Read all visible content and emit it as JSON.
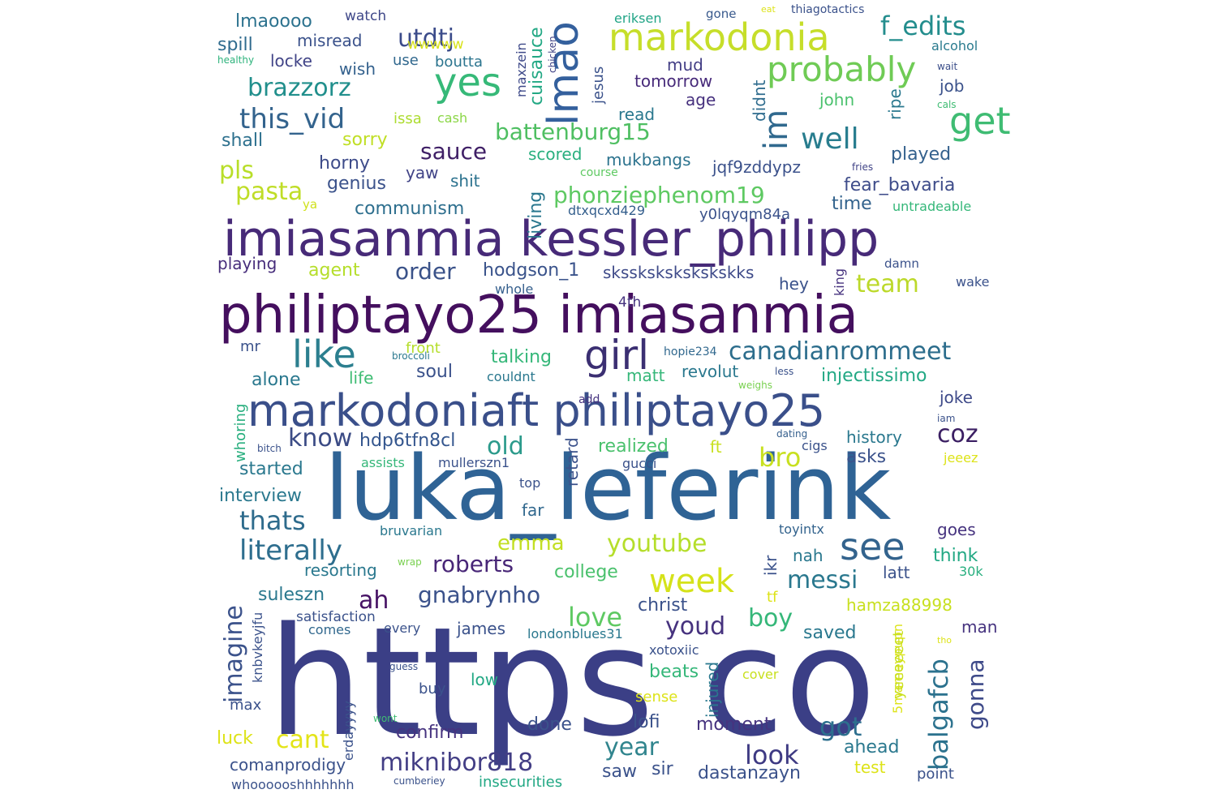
{
  "cloud": {
    "words": [
      {
        "text": "https co",
        "color": "#3b3f86"
      },
      {
        "text": "luka_leferink",
        "color": "#2f6395"
      },
      {
        "text": "philiptayo25 imiasanmia",
        "color": "#440f5e"
      },
      {
        "text": "imiasanmia kessler_philipp",
        "color": "#472a78"
      },
      {
        "text": "markodoniaft philiptayo25",
        "color": "#3a4f8a"
      },
      {
        "text": "markodonia",
        "color": "#c6de2a"
      },
      {
        "text": "lmao",
        "color": "#34609d"
      },
      {
        "text": "yes",
        "color": "#36b978"
      },
      {
        "text": "probably",
        "color": "#6fcb55"
      },
      {
        "text": "get",
        "color": "#3fbc73"
      },
      {
        "text": "f_edits",
        "color": "#238d8d"
      },
      {
        "text": "utdtj",
        "color": "#3b4b8a"
      },
      {
        "text": "brazzorz",
        "color": "#218f8c"
      },
      {
        "text": "this_vid",
        "color": "#33638d"
      },
      {
        "text": "im",
        "color": "#30698e"
      },
      {
        "text": "well",
        "color": "#287d8e"
      },
      {
        "text": "battenburg15",
        "color": "#4fbf62"
      },
      {
        "text": "sauce",
        "color": "#3f1f66"
      },
      {
        "text": "pls",
        "color": "#b8de29"
      },
      {
        "text": "pasta",
        "color": "#bfdd27"
      },
      {
        "text": "phonziephenom19",
        "color": "#5ec962"
      },
      {
        "text": "order",
        "color": "#3a5289"
      },
      {
        "text": "like",
        "color": "#2c7f8f"
      },
      {
        "text": "girl",
        "color": "#3b2f72"
      },
      {
        "text": "canadianrommeet",
        "color": "#2c6d8c"
      },
      {
        "text": "team",
        "color": "#bcd92a"
      },
      {
        "text": "know",
        "color": "#3b4b85"
      },
      {
        "text": "hdp6tfn8cl",
        "color": "#34568e"
      },
      {
        "text": "old",
        "color": "#2b9a8b"
      },
      {
        "text": "bro",
        "color": "#c8e020"
      },
      {
        "text": "coz",
        "color": "#3b1f63"
      },
      {
        "text": "see",
        "color": "#33638d"
      },
      {
        "text": "literally",
        "color": "#2e6e8e"
      },
      {
        "text": "thats",
        "color": "#2e6b8c"
      },
      {
        "text": "roberts",
        "color": "#482677"
      },
      {
        "text": "youtube",
        "color": "#b5de2b"
      },
      {
        "text": "week",
        "color": "#d5e21a"
      },
      {
        "text": "messi",
        "color": "#2a788e"
      },
      {
        "text": "emma",
        "color": "#c2df23"
      },
      {
        "text": "ah",
        "color": "#471365"
      },
      {
        "text": "gnabrynho",
        "color": "#3b528b"
      },
      {
        "text": "love",
        "color": "#5ec962"
      },
      {
        "text": "boy",
        "color": "#35b779"
      },
      {
        "text": "youd",
        "color": "#46327e"
      },
      {
        "text": "imagine",
        "color": "#3b528b"
      },
      {
        "text": "balgafcb",
        "color": "#2c728e"
      },
      {
        "text": "gonna",
        "color": "#3e4a89"
      },
      {
        "text": "got",
        "color": "#2d6f8e"
      },
      {
        "text": "cant",
        "color": "#e3e418"
      },
      {
        "text": "year",
        "color": "#31858e"
      },
      {
        "text": "look",
        "color": "#3e3a83"
      },
      {
        "text": "miknibor818",
        "color": "#433e85"
      },
      {
        "text": "lmaoooo",
        "color": "#2c728e"
      },
      {
        "text": "watch",
        "color": "#3f4889"
      },
      {
        "text": "spill",
        "color": "#2f6b8e"
      },
      {
        "text": "misread",
        "color": "#3b528b"
      },
      {
        "text": "wwwww",
        "color": "#d8e219"
      },
      {
        "text": "locke",
        "color": "#414487"
      },
      {
        "text": "wish",
        "color": "#34618d"
      },
      {
        "text": "use",
        "color": "#31688e"
      },
      {
        "text": "boutta",
        "color": "#2b748e"
      },
      {
        "text": "issa",
        "color": "#addc30"
      },
      {
        "text": "cash",
        "color": "#8bd646"
      },
      {
        "text": "sorry",
        "color": "#c0df25"
      },
      {
        "text": "shall",
        "color": "#2d708e"
      },
      {
        "text": "horny",
        "color": "#3e4c8a"
      },
      {
        "text": "genius",
        "color": "#3b528b"
      },
      {
        "text": "yaw",
        "color": "#414487"
      },
      {
        "text": "shit",
        "color": "#2c728e"
      },
      {
        "text": "communism",
        "color": "#2e6f8e"
      },
      {
        "text": "agent",
        "color": "#b5de2b"
      },
      {
        "text": "playing",
        "color": "#472d7b"
      },
      {
        "text": "hodgson_1",
        "color": "#3a538b"
      },
      {
        "text": "living",
        "color": "#2a778e"
      },
      {
        "text": "cuisauce",
        "color": "#22a884"
      },
      {
        "text": "maxzein",
        "color": "#3e4989"
      },
      {
        "text": "chicken",
        "color": "#414487"
      },
      {
        "text": "jesus",
        "color": "#3b528b"
      },
      {
        "text": "mud",
        "color": "#433e85"
      },
      {
        "text": "tomorrow",
        "color": "#472a7a"
      },
      {
        "text": "read",
        "color": "#2a788e"
      },
      {
        "text": "age",
        "color": "#46307e"
      },
      {
        "text": "didnt",
        "color": "#2f6c8e"
      },
      {
        "text": "scored",
        "color": "#29af7f"
      },
      {
        "text": "mukbangs",
        "color": "#2c738e"
      },
      {
        "text": "jqf9zddypz",
        "color": "#3b518b"
      },
      {
        "text": "eriksen",
        "color": "#20a486"
      },
      {
        "text": "gone",
        "color": "#38598c"
      },
      {
        "text": "eat",
        "color": "#dde318"
      },
      {
        "text": "thiagotactics",
        "color": "#3b528b"
      },
      {
        "text": "alcohol",
        "color": "#2a7b8e"
      },
      {
        "text": "wait",
        "color": "#3c4f8a"
      },
      {
        "text": "cals",
        "color": "#3fbc73"
      },
      {
        "text": "healthy",
        "color": "#2eb37c"
      },
      {
        "text": "ripe",
        "color": "#2a788e"
      },
      {
        "text": "job",
        "color": "#3b528b"
      },
      {
        "text": "john",
        "color": "#4ac16d"
      },
      {
        "text": "played",
        "color": "#34618d"
      },
      {
        "text": "fear_bavaria",
        "color": "#3e4c8a"
      },
      {
        "text": "time",
        "color": "#33638d"
      },
      {
        "text": "untradeable",
        "color": "#35b779"
      },
      {
        "text": "y0lqyqm84a",
        "color": "#3b528b"
      },
      {
        "text": "dtxqcxd429",
        "color": "#355f8d"
      },
      {
        "text": "ya",
        "color": "#d0e11c"
      },
      {
        "text": "course",
        "color": "#5ec962"
      },
      {
        "text": "fries",
        "color": "#414487"
      },
      {
        "text": "sksskskskskskskks",
        "color": "#3e4a89"
      },
      {
        "text": "damn",
        "color": "#3b528b"
      },
      {
        "text": "king",
        "color": "#46327e"
      },
      {
        "text": "wake",
        "color": "#3b528b"
      },
      {
        "text": "hey",
        "color": "#3b528b"
      },
      {
        "text": "whole",
        "color": "#355f8d"
      },
      {
        "text": "4th",
        "color": "#46337f"
      },
      {
        "text": "front",
        "color": "#b5de2b"
      },
      {
        "text": "talking",
        "color": "#35b779"
      },
      {
        "text": "hopie234",
        "color": "#31688e"
      },
      {
        "text": "mr",
        "color": "#3b528b"
      },
      {
        "text": "alone",
        "color": "#2a788e"
      },
      {
        "text": "life",
        "color": "#3fbc73"
      },
      {
        "text": "soul",
        "color": "#3b528b"
      },
      {
        "text": "broccoli",
        "color": "#2a788e"
      },
      {
        "text": "couldnt",
        "color": "#2a788e"
      },
      {
        "text": "matt",
        "color": "#35b779"
      },
      {
        "text": "revolut",
        "color": "#2a788e"
      },
      {
        "text": "less",
        "color": "#3b528b"
      },
      {
        "text": "injectissimo",
        "color": "#22a884"
      },
      {
        "text": "weighs",
        "color": "#7ad151"
      },
      {
        "text": "add",
        "color": "#46337f"
      },
      {
        "text": "joke",
        "color": "#3e4a89"
      },
      {
        "text": "iam",
        "color": "#3b528b"
      },
      {
        "text": "whoring",
        "color": "#29af7f"
      },
      {
        "text": "retard",
        "color": "#3b528b"
      },
      {
        "text": "realized",
        "color": "#4ac16d"
      },
      {
        "text": "ft",
        "color": "#c8e020"
      },
      {
        "text": "cigs",
        "color": "#3b528b"
      },
      {
        "text": "history",
        "color": "#2a788e"
      },
      {
        "text": "bitch",
        "color": "#3b528b"
      },
      {
        "text": "dating",
        "color": "#355f8d"
      },
      {
        "text": "started",
        "color": "#2a788e"
      },
      {
        "text": "assists",
        "color": "#35b779"
      },
      {
        "text": "mullerszn1",
        "color": "#3b528b"
      },
      {
        "text": "gucci",
        "color": "#3b528b"
      },
      {
        "text": "asks",
        "color": "#3b528b"
      },
      {
        "text": "jeeez",
        "color": "#dde318"
      },
      {
        "text": "interview",
        "color": "#2a788e"
      },
      {
        "text": "far",
        "color": "#31688e"
      },
      {
        "text": "top",
        "color": "#3b528b"
      },
      {
        "text": "bruvarian",
        "color": "#2a788e"
      },
      {
        "text": "toyintx",
        "color": "#33638d"
      },
      {
        "text": "goes",
        "color": "#46337f"
      },
      {
        "text": "nah",
        "color": "#2a788e"
      },
      {
        "text": "think",
        "color": "#22a884"
      },
      {
        "text": "ikr",
        "color": "#3b528b"
      },
      {
        "text": "wrap",
        "color": "#7ad151"
      },
      {
        "text": "resorting",
        "color": "#2a788e"
      },
      {
        "text": "college",
        "color": "#4ac16d"
      },
      {
        "text": "latt",
        "color": "#3b528b"
      },
      {
        "text": "30k",
        "color": "#29af7f"
      },
      {
        "text": "suleszn",
        "color": "#2a788e"
      },
      {
        "text": "tf",
        "color": "#dde318"
      },
      {
        "text": "christ",
        "color": "#3b528b"
      },
      {
        "text": "hamza88998",
        "color": "#c8e020"
      },
      {
        "text": "satisfaction",
        "color": "#3b528b"
      },
      {
        "text": "comes",
        "color": "#31688e"
      },
      {
        "text": "every",
        "color": "#3b528b"
      },
      {
        "text": "james",
        "color": "#3b528b"
      },
      {
        "text": "londonblues31",
        "color": "#2a788e"
      },
      {
        "text": "saved",
        "color": "#2a788e"
      },
      {
        "text": "man",
        "color": "#46337f"
      },
      {
        "text": "knbvkeyjfu",
        "color": "#3b528b"
      },
      {
        "text": "xotoxiic",
        "color": "#3b528b"
      },
      {
        "text": "5mamaypupn",
        "color": "#dde318"
      },
      {
        "text": "yeeeeeet",
        "color": "#c8e020"
      },
      {
        "text": "tho",
        "color": "#dde318"
      },
      {
        "text": "beats",
        "color": "#35b779"
      },
      {
        "text": "guess",
        "color": "#3b528b"
      },
      {
        "text": "low",
        "color": "#22a884"
      },
      {
        "text": "cover",
        "color": "#c8e020"
      },
      {
        "text": "sense",
        "color": "#dde318"
      },
      {
        "text": "max",
        "color": "#3b528b"
      },
      {
        "text": "buy",
        "color": "#3b528b"
      },
      {
        "text": "injured",
        "color": "#2a788e"
      },
      {
        "text": "done",
        "color": "#3b528b"
      },
      {
        "text": "lofi",
        "color": "#3b528b"
      },
      {
        "text": "moment",
        "color": "#46337f"
      },
      {
        "text": "erdayyyy",
        "color": "#3b528b"
      },
      {
        "text": "wont",
        "color": "#3fbc73"
      },
      {
        "text": "confirm",
        "color": "#46337f"
      },
      {
        "text": "ahead",
        "color": "#2a788e"
      },
      {
        "text": "luck",
        "color": "#dde318"
      },
      {
        "text": "saw",
        "color": "#3b528b"
      },
      {
        "text": "sir",
        "color": "#3b528b"
      },
      {
        "text": "comanprodigy",
        "color": "#3b528b"
      },
      {
        "text": "dastanzayn",
        "color": "#3b528b"
      },
      {
        "text": "test",
        "color": "#dde318"
      },
      {
        "text": "whoooooshhhhhhh",
        "color": "#3b528b"
      },
      {
        "text": "cumberiey",
        "color": "#3b528b"
      },
      {
        "text": "insecurities",
        "color": "#22a884"
      },
      {
        "text": "point",
        "color": "#3b528b"
      }
    ]
  }
}
